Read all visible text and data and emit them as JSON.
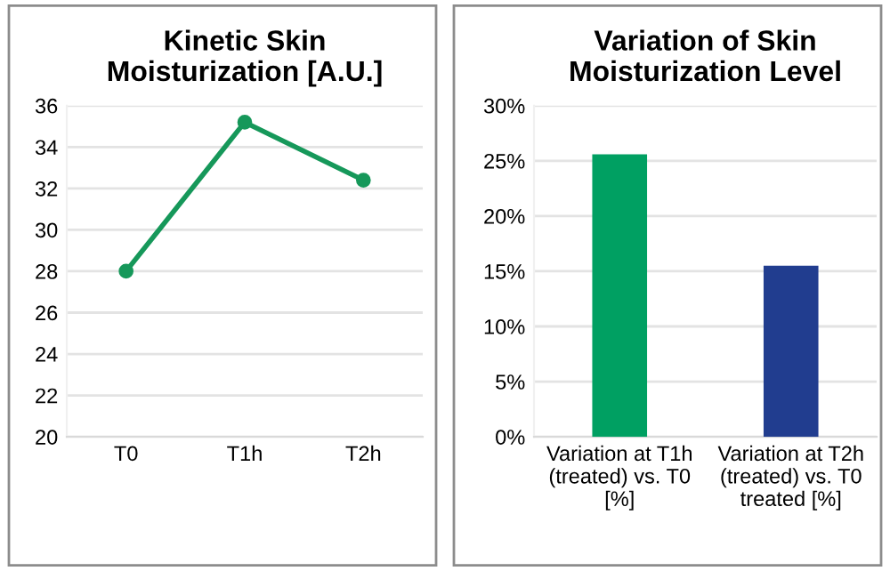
{
  "chart_data": [
    {
      "type": "line",
      "title": "Kinetic Skin\nMoisturization [A.U.]",
      "categories": [
        "T0",
        "T1h",
        "T2h"
      ],
      "series": [
        {
          "color": "#16985a",
          "values": [
            28,
            35.2,
            32.4
          ]
        }
      ],
      "ylim": [
        20,
        36
      ],
      "yticks": [
        20,
        22,
        24,
        26,
        28,
        30,
        32,
        34,
        36
      ],
      "grid": "y",
      "marker": "circle",
      "line_style": "solid"
    },
    {
      "type": "bar",
      "title": "Variation of Skin\nMoisturization Level",
      "categories": [
        "Variation at T1h\n(treated) vs. T0\n[%]",
        "Variation at T2h\n(treated) vs. T0\ntreated [%]"
      ],
      "values": [
        25.6,
        15.5
      ],
      "colors": [
        "#00a062",
        "#213d8f"
      ],
      "ylim": [
        0,
        30
      ],
      "yticks": [
        {
          "value": 0,
          "label": "0%"
        },
        {
          "value": 5,
          "label": "5%"
        },
        {
          "value": 10,
          "label": "10%"
        },
        {
          "value": 15,
          "label": "15%"
        },
        {
          "value": 20,
          "label": "20%"
        },
        {
          "value": 25,
          "label": "25%"
        },
        {
          "value": 30,
          "label": "30%"
        }
      ],
      "grid": "y"
    }
  ]
}
